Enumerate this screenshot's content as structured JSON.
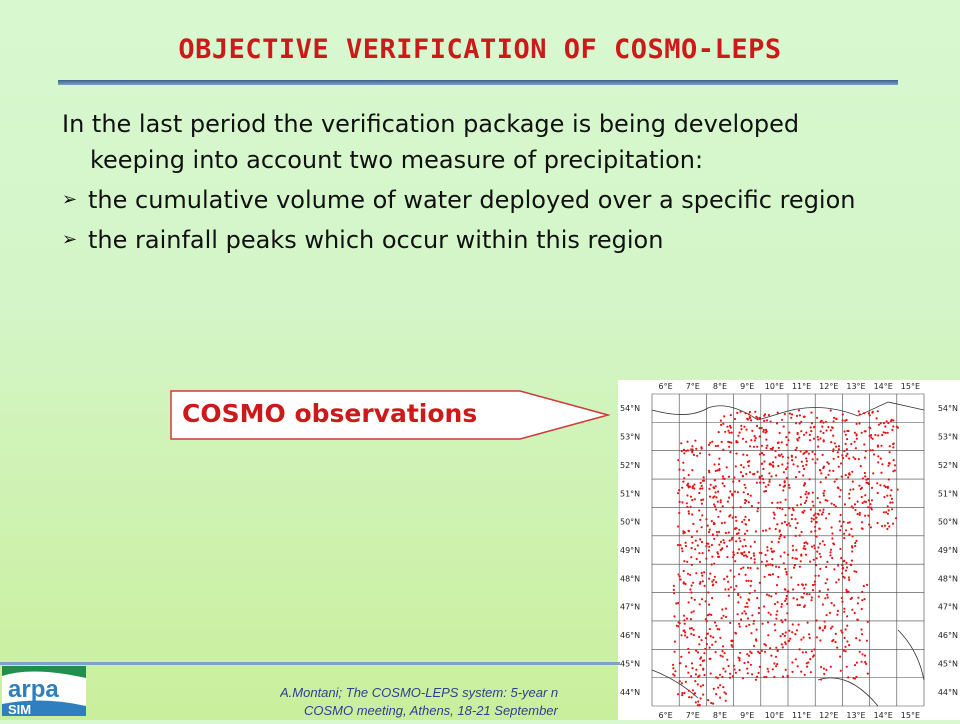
{
  "slide": {
    "title": "OBJECTIVE VERIFICATION OF COSMO-LEPS",
    "intro": "In the last period the verification package is being developed keeping into account two measure of precipitation:",
    "bullets": [
      "the cumulative volume of water deployed over a specific region",
      "the rainfall peaks which occur within this region"
    ],
    "callout_label": "COSMO observations",
    "footer_line1": "A.Montani; The COSMO-LEPS system: 5-year n",
    "footer_line2": "COSMO meeting, Athens, 18-21 September",
    "logo_text": "arpa",
    "logo_sub": "SIM"
  },
  "map": {
    "lon_labels": [
      "6°E",
      "7°E",
      "8°E",
      "9°E",
      "10°E",
      "11°E",
      "12°E",
      "13°E",
      "14°E",
      "15°E"
    ],
    "lat_labels": [
      "54°N",
      "53°N",
      "52°N",
      "51°N",
      "50°N",
      "49°N",
      "48°N",
      "47°N",
      "46°N",
      "45°N",
      "44°N"
    ],
    "point_color": "#e81414"
  },
  "colors": {
    "title": "#cc1a1a",
    "rule": "#3a5f8a",
    "footer_text": "#2f3f8f"
  }
}
